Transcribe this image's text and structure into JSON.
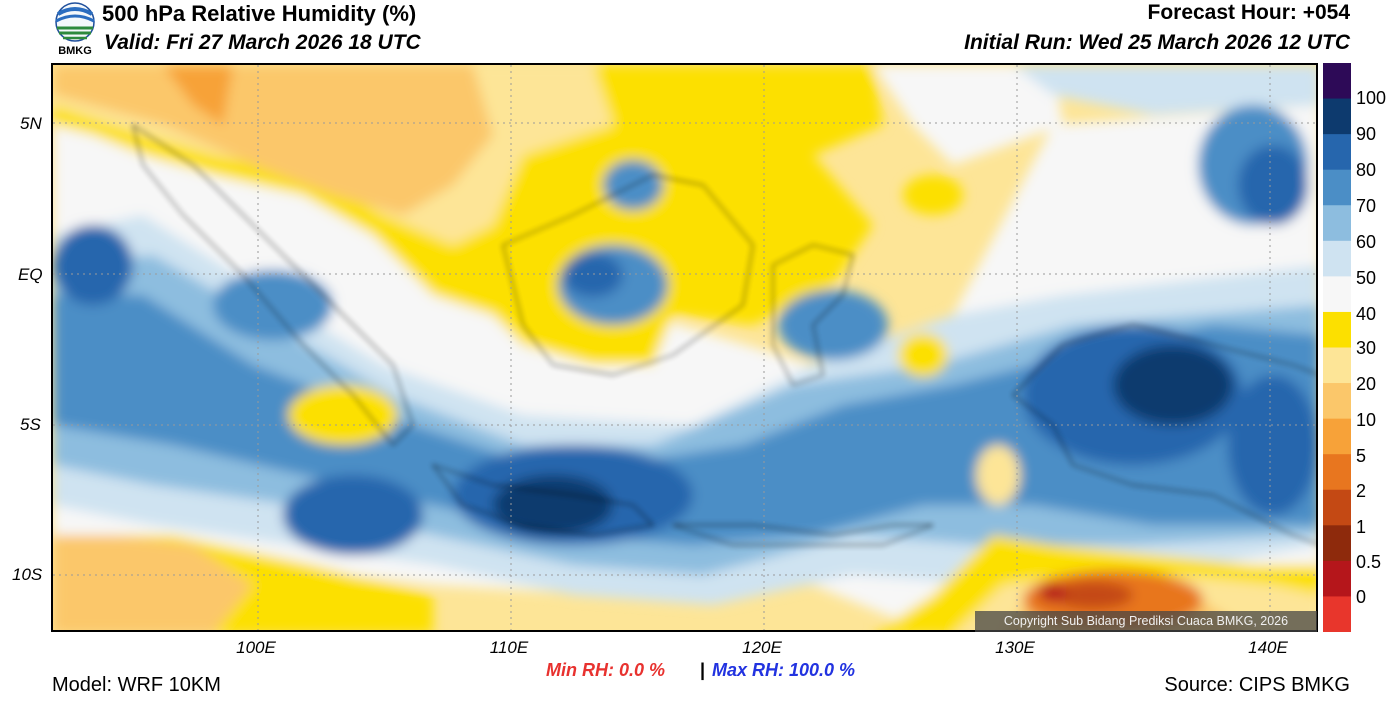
{
  "header": {
    "title": "500 hPa Relative Humidity (%)",
    "valid": "Valid: Fri 27 March 2026 18 UTC",
    "forecast_hour": "Forecast Hour: +054",
    "initial_run": "Initial Run: Wed 25 March 2026 12 UTC",
    "logo_text": "BMKG"
  },
  "axes": {
    "lat_labels": [
      "5N",
      "EQ",
      "5S",
      "10S"
    ],
    "lon_labels": [
      "100E",
      "110E",
      "120E",
      "130E",
      "140E"
    ]
  },
  "colorbar": {
    "labels": [
      "100",
      "90",
      "80",
      "70",
      "60",
      "50",
      "40",
      "30",
      "20",
      "10",
      "5",
      "2",
      "1",
      "0.5",
      "0"
    ],
    "colors": [
      "#2d0a57",
      "#0d3a6e",
      "#2666ad",
      "#4b8ec6",
      "#8dbddf",
      "#cfe3f1",
      "#f7f7f7",
      "#fce000",
      "#fde597",
      "#fbc76a",
      "#f7a239",
      "#e8761f",
      "#c44914",
      "#8e2a0c",
      "#b5161b",
      "#e8362c"
    ]
  },
  "footer": {
    "min_rh": "Min RH:   0.0 %",
    "separator": "|",
    "max_rh": "Max RH: 100.0 %",
    "model": "Model: WRF 10KM",
    "source": "Source: CIPS BMKG",
    "copyright": "Copyright Sub Bidang Prediksi Cuaca BMKG, 2026"
  }
}
